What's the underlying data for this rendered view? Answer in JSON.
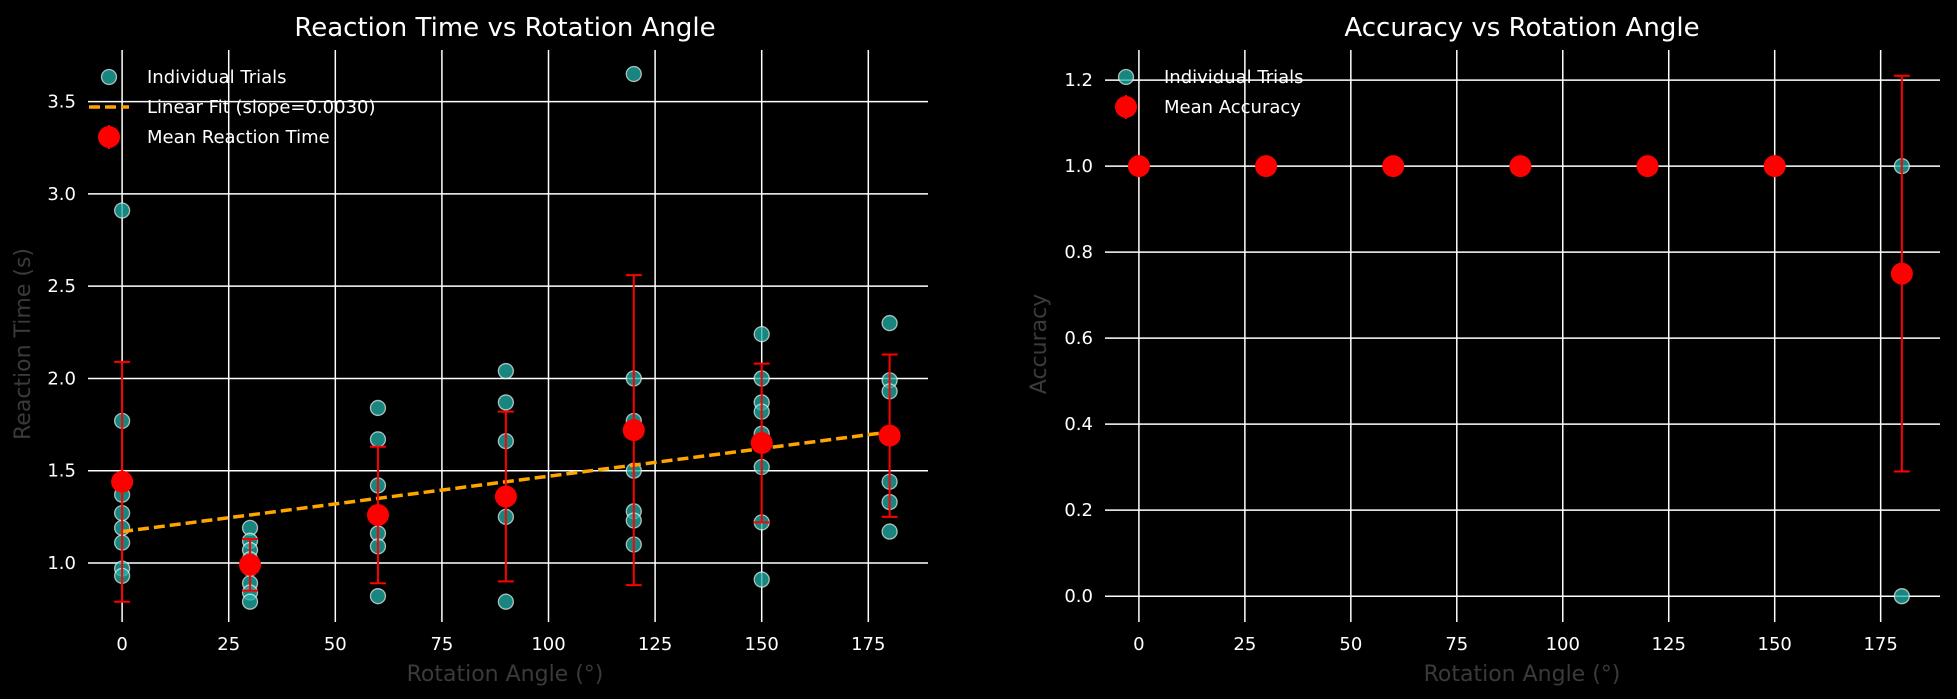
{
  "chart_data": [
    {
      "type": "scatter",
      "title": "Reaction Time vs Rotation Angle",
      "xlabel": "Rotation Angle (°)",
      "ylabel": "Reaction Time (s)",
      "xlim": [
        -8,
        189
      ],
      "ylim": [
        0.68,
        3.78
      ],
      "xticks": [
        0,
        25,
        50,
        75,
        100,
        125,
        150,
        175
      ],
      "yticks": [
        1.0,
        1.5,
        2.0,
        2.5,
        3.0,
        3.5
      ],
      "ytick_labels": [
        "1.0",
        "1.5",
        "2.0",
        "2.5",
        "3.0",
        "3.5"
      ],
      "grid": true,
      "legend_position": "upper-left",
      "legend": [
        "Individual Trials",
        "Linear Fit (slope=0.0030)",
        "Mean Reaction Time"
      ],
      "colors": {
        "trials": "#20b2aa",
        "fit": "#ffa500",
        "mean": "#ff0000"
      },
      "trials": {
        "name": "Individual Trials",
        "points": [
          [
            0,
            2.91
          ],
          [
            0,
            1.77
          ],
          [
            0,
            1.37
          ],
          [
            0,
            1.27
          ],
          [
            0,
            1.19
          ],
          [
            0,
            1.11
          ],
          [
            0,
            0.97
          ],
          [
            0,
            0.93
          ],
          [
            30,
            1.19
          ],
          [
            30,
            1.12
          ],
          [
            30,
            1.07
          ],
          [
            30,
            1.02
          ],
          [
            30,
            0.97
          ],
          [
            30,
            0.89
          ],
          [
            30,
            0.84
          ],
          [
            30,
            0.79
          ],
          [
            60,
            1.84
          ],
          [
            60,
            1.67
          ],
          [
            60,
            1.42
          ],
          [
            60,
            1.27
          ],
          [
            60,
            1.16
          ],
          [
            60,
            1.09
          ],
          [
            60,
            0.82
          ],
          [
            90,
            2.04
          ],
          [
            90,
            1.87
          ],
          [
            90,
            1.66
          ],
          [
            90,
            1.37
          ],
          [
            90,
            1.25
          ],
          [
            90,
            0.79
          ],
          [
            120,
            3.65
          ],
          [
            120,
            2.0
          ],
          [
            120,
            1.77
          ],
          [
            120,
            1.5
          ],
          [
            120,
            1.28
          ],
          [
            120,
            1.23
          ],
          [
            120,
            1.1
          ],
          [
            150,
            2.24
          ],
          [
            150,
            2.0
          ],
          [
            150,
            1.87
          ],
          [
            150,
            1.82
          ],
          [
            150,
            1.7
          ],
          [
            150,
            1.52
          ],
          [
            150,
            1.22
          ],
          [
            150,
            0.91
          ],
          [
            180,
            2.3
          ],
          [
            180,
            1.99
          ],
          [
            180,
            1.93
          ],
          [
            180,
            1.44
          ],
          [
            180,
            1.33
          ],
          [
            180,
            1.17
          ]
        ]
      },
      "fit": {
        "name": "Linear Fit (slope=0.0030)",
        "x": [
          0,
          180
        ],
        "y": [
          1.17,
          1.71
        ]
      },
      "means": {
        "name": "Mean Reaction Time",
        "x": [
          0,
          30,
          60,
          90,
          120,
          150,
          180
        ],
        "y": [
          1.44,
          0.99,
          1.26,
          1.36,
          1.72,
          1.65,
          1.69
        ],
        "err": [
          0.65,
          0.14,
          0.37,
          0.46,
          0.84,
          0.43,
          0.44
        ]
      }
    },
    {
      "type": "scatter",
      "title": "Accuracy vs Rotation Angle",
      "xlabel": "Rotation Angle (°)",
      "ylabel": "Accuracy",
      "xlim": [
        -8,
        189
      ],
      "ylim": [
        -0.06,
        1.27
      ],
      "xticks": [
        0,
        25,
        50,
        75,
        100,
        125,
        150,
        175
      ],
      "yticks": [
        0.0,
        0.2,
        0.4,
        0.6,
        0.8,
        1.0,
        1.2
      ],
      "ytick_labels": [
        "0.0",
        "0.2",
        "0.4",
        "0.6",
        "0.8",
        "1.0",
        "1.2"
      ],
      "grid": true,
      "legend_position": "upper-left",
      "legend": [
        "Individual Trials",
        "Mean Accuracy"
      ],
      "colors": {
        "trials": "#20b2aa",
        "mean": "#ff0000"
      },
      "trials": {
        "name": "Individual Trials",
        "points": [
          [
            0,
            1.0
          ],
          [
            30,
            1.0
          ],
          [
            60,
            1.0
          ],
          [
            90,
            1.0
          ],
          [
            120,
            1.0
          ],
          [
            150,
            1.0
          ],
          [
            180,
            1.0
          ],
          [
            180,
            0.0
          ]
        ]
      },
      "means": {
        "name": "Mean Accuracy",
        "x": [
          0,
          30,
          60,
          90,
          120,
          150,
          180
        ],
        "y": [
          1.0,
          1.0,
          1.0,
          1.0,
          1.0,
          1.0,
          0.75
        ],
        "err": [
          0,
          0,
          0,
          0,
          0,
          0,
          0.46
        ]
      }
    }
  ]
}
